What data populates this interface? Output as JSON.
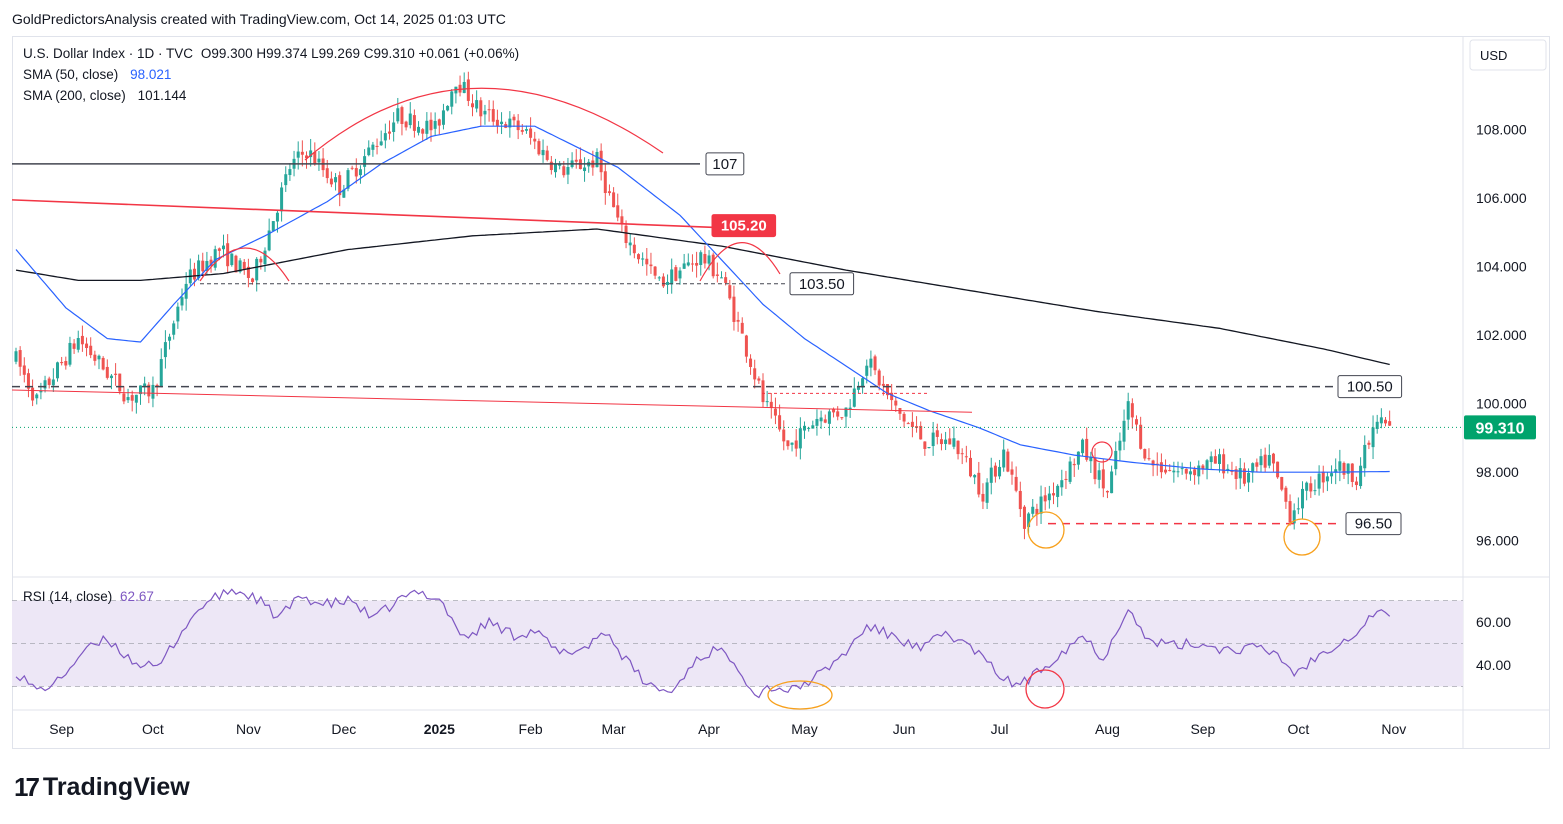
{
  "header": {
    "text": "GoldPredictorsAnalysis created with TradingView.com, Oct 14, 2025 01:03 UTC"
  },
  "legend": {
    "symbol": "U.S. Dollar Index · 1D · TVC",
    "ohlc": "O99.300  H99.374  L99.269  C99.310  +0.061 (+0.06%)",
    "sma50_label": "SMA (50, close)",
    "sma50_value": "98.021",
    "sma200_label": "SMA (200, close)",
    "sma200_value": "101.144",
    "rsi_label": "RSI (14, close)",
    "rsi_value": "62.67"
  },
  "currency": "USD",
  "footer": {
    "brand": "TradingView",
    "mark": "17"
  },
  "colors": {
    "up": "#26a69a",
    "down": "#ef5350",
    "sma50": "#2962ff",
    "sma200": "#131722",
    "rsi": "#7e57c2",
    "rsi_band": "#ede7f6",
    "resistance": "#f23645",
    "price_tag": "#00a36c"
  },
  "chart_data": [
    {
      "type": "candlestick",
      "title": "U.S. Dollar Index · 1D · TVC",
      "x_ticks": [
        "Sep",
        "Oct",
        "Nov",
        "Dec",
        "2025",
        "Feb",
        "Mar",
        "Apr",
        "May",
        "Jun",
        "Jul",
        "Aug",
        "Sep",
        "Oct",
        "Nov"
      ],
      "y_ticks": [
        "108.000",
        "106.000",
        "104.000",
        "102.000",
        "100.000",
        "98.000",
        "96.000"
      ],
      "ylim": [
        95.0,
        110.5
      ],
      "last_price": "99.310",
      "anchors": [
        [
          0,
          101.3
        ],
        [
          5,
          100.1
        ],
        [
          15,
          101.9
        ],
        [
          27,
          100.2
        ],
        [
          33,
          100.4
        ],
        [
          41,
          103.6
        ],
        [
          49,
          104.5
        ],
        [
          57,
          103.6
        ],
        [
          66,
          106.9
        ],
        [
          70,
          107.4
        ],
        [
          78,
          106.3
        ],
        [
          92,
          108.4
        ],
        [
          101,
          108.0
        ],
        [
          106,
          109.5
        ],
        [
          112,
          108.5
        ],
        [
          122,
          108.0
        ],
        [
          131,
          106.8
        ],
        [
          140,
          107.1
        ],
        [
          146,
          105.0
        ],
        [
          155,
          103.5
        ],
        [
          165,
          104.3
        ],
        [
          170,
          103.7
        ],
        [
          176,
          101.6
        ],
        [
          180,
          100.1
        ],
        [
          186,
          98.7
        ],
        [
          193,
          99.6
        ],
        [
          200,
          99.8
        ],
        [
          205,
          101.3
        ],
        [
          212,
          99.8
        ],
        [
          219,
          98.9
        ],
        [
          226,
          98.9
        ],
        [
          233,
          97.4
        ],
        [
          238,
          98.6
        ],
        [
          243,
          96.6
        ],
        [
          250,
          97.5
        ],
        [
          257,
          98.7
        ],
        [
          263,
          97.4
        ],
        [
          268,
          99.9
        ],
        [
          273,
          98.3
        ],
        [
          280,
          98.0
        ],
        [
          290,
          98.3
        ],
        [
          296,
          97.8
        ],
        [
          302,
          98.4
        ],
        [
          307,
          96.8
        ],
        [
          312,
          97.6
        ],
        [
          318,
          98.2
        ],
        [
          323,
          97.9
        ],
        [
          328,
          99.5
        ],
        [
          331,
          99.31
        ]
      ],
      "sma50": [
        [
          0,
          104.5
        ],
        [
          12,
          102.8
        ],
        [
          22,
          101.9
        ],
        [
          30,
          101.8
        ],
        [
          38,
          102.9
        ],
        [
          48,
          104.2
        ],
        [
          60,
          104.9
        ],
        [
          75,
          105.9
        ],
        [
          88,
          107.0
        ],
        [
          100,
          107.8
        ],
        [
          112,
          108.1
        ],
        [
          125,
          108.1
        ],
        [
          135,
          107.5
        ],
        [
          145,
          106.9
        ],
        [
          160,
          105.5
        ],
        [
          170,
          104.2
        ],
        [
          180,
          102.9
        ],
        [
          190,
          101.9
        ],
        [
          200,
          101.1
        ],
        [
          210,
          100.3
        ],
        [
          220,
          99.8
        ],
        [
          232,
          99.3
        ],
        [
          242,
          98.8
        ],
        [
          255,
          98.5
        ],
        [
          268,
          98.3
        ],
        [
          285,
          98.1
        ],
        [
          300,
          98.0
        ],
        [
          316,
          98.0
        ],
        [
          331,
          98.021
        ]
      ],
      "sma200": [
        [
          0,
          103.9
        ],
        [
          15,
          103.6
        ],
        [
          30,
          103.6
        ],
        [
          50,
          103.8
        ],
        [
          80,
          104.5
        ],
        [
          110,
          104.9
        ],
        [
          140,
          105.1
        ],
        [
          170,
          104.6
        ],
        [
          200,
          103.9
        ],
        [
          230,
          103.3
        ],
        [
          260,
          102.7
        ],
        [
          290,
          102.2
        ],
        [
          315,
          101.6
        ],
        [
          331,
          101.144
        ]
      ],
      "levels": [
        {
          "label": "107",
          "value": 107.0
        },
        {
          "label": "105.20",
          "value": 105.2
        },
        {
          "label": "103.50",
          "value": 103.5
        },
        {
          "label": "100.50",
          "value": 100.5
        },
        {
          "label": "96.50",
          "value": 96.5
        }
      ]
    },
    {
      "type": "line",
      "title": "RSI (14, close)",
      "y_ticks": [
        "60.00",
        "40.00"
      ],
      "ylim": [
        20,
        80
      ],
      "band": [
        30,
        70
      ],
      "last_value": "62.67",
      "anchors": [
        [
          0,
          37
        ],
        [
          5,
          28
        ],
        [
          10,
          32
        ],
        [
          16,
          46
        ],
        [
          22,
          52
        ],
        [
          28,
          42
        ],
        [
          34,
          38
        ],
        [
          40,
          56
        ],
        [
          45,
          68
        ],
        [
          52,
          75
        ],
        [
          58,
          71
        ],
        [
          63,
          62
        ],
        [
          69,
          72
        ],
        [
          74,
          68
        ],
        [
          81,
          70
        ],
        [
          86,
          61
        ],
        [
          92,
          70
        ],
        [
          97,
          74
        ],
        [
          102,
          71
        ],
        [
          108,
          52
        ],
        [
          114,
          60
        ],
        [
          120,
          54
        ],
        [
          125,
          56
        ],
        [
          131,
          45
        ],
        [
          137,
          48
        ],
        [
          142,
          56
        ],
        [
          147,
          42
        ],
        [
          152,
          31
        ],
        [
          158,
          27
        ],
        [
          163,
          41
        ],
        [
          168,
          47
        ],
        [
          173,
          43
        ],
        [
          178,
          26
        ],
        [
          182,
          30
        ],
        [
          187,
          28
        ],
        [
          194,
          36
        ],
        [
          200,
          46
        ],
        [
          205,
          58
        ],
        [
          212,
          53
        ],
        [
          218,
          47
        ],
        [
          224,
          55
        ],
        [
          231,
          47
        ],
        [
          236,
          37
        ],
        [
          240,
          31
        ],
        [
          244,
          33
        ],
        [
          250,
          43
        ],
        [
          257,
          54
        ],
        [
          262,
          43
        ],
        [
          266,
          59
        ],
        [
          268,
          68
        ],
        [
          272,
          52
        ],
        [
          278,
          49
        ],
        [
          285,
          50
        ],
        [
          292,
          47
        ],
        [
          298,
          48
        ],
        [
          304,
          45
        ],
        [
          308,
          36
        ],
        [
          313,
          43
        ],
        [
          318,
          50
        ],
        [
          323,
          55
        ],
        [
          328,
          66
        ],
        [
          331,
          62.67
        ]
      ]
    }
  ]
}
